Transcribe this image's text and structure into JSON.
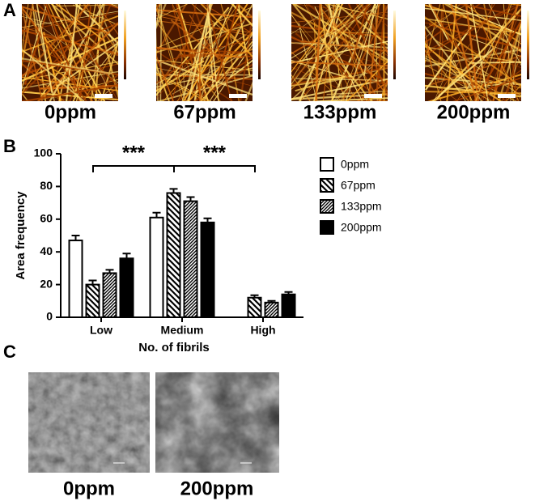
{
  "panel_a": {
    "label": "A",
    "captions": [
      "0ppm",
      "67ppm",
      "133ppm",
      "200ppm"
    ]
  },
  "chart_data": {
    "type": "bar",
    "panel_label": "B",
    "categories": [
      "Low",
      "Medium",
      "High"
    ],
    "xlabel": "No. of fibrils",
    "ylabel": "Area frequency",
    "ylim": [
      0,
      100
    ],
    "yticks": [
      0,
      20,
      40,
      60,
      80,
      100
    ],
    "annotations": [
      "***",
      "***"
    ],
    "series": [
      {
        "name": "0ppm",
        "color": "#ffffff",
        "fill": "solid",
        "values": [
          47,
          61,
          null
        ],
        "errors": [
          3,
          3,
          null
        ]
      },
      {
        "name": "67ppm",
        "color": "#000000",
        "fill": "hatch",
        "values": [
          20,
          76,
          12
        ],
        "errors": [
          2.5,
          2.5,
          1.5
        ]
      },
      {
        "name": "133ppm",
        "color": "#000000",
        "fill": "dense-hatch",
        "values": [
          27,
          71,
          9
        ],
        "errors": [
          2,
          2.5,
          1
        ]
      },
      {
        "name": "200ppm",
        "color": "#000000",
        "fill": "solid",
        "values": [
          36,
          58,
          14
        ],
        "errors": [
          3,
          2.5,
          1.5
        ]
      }
    ]
  },
  "panel_c": {
    "label": "C",
    "captions": [
      "0ppm",
      "200ppm"
    ]
  }
}
